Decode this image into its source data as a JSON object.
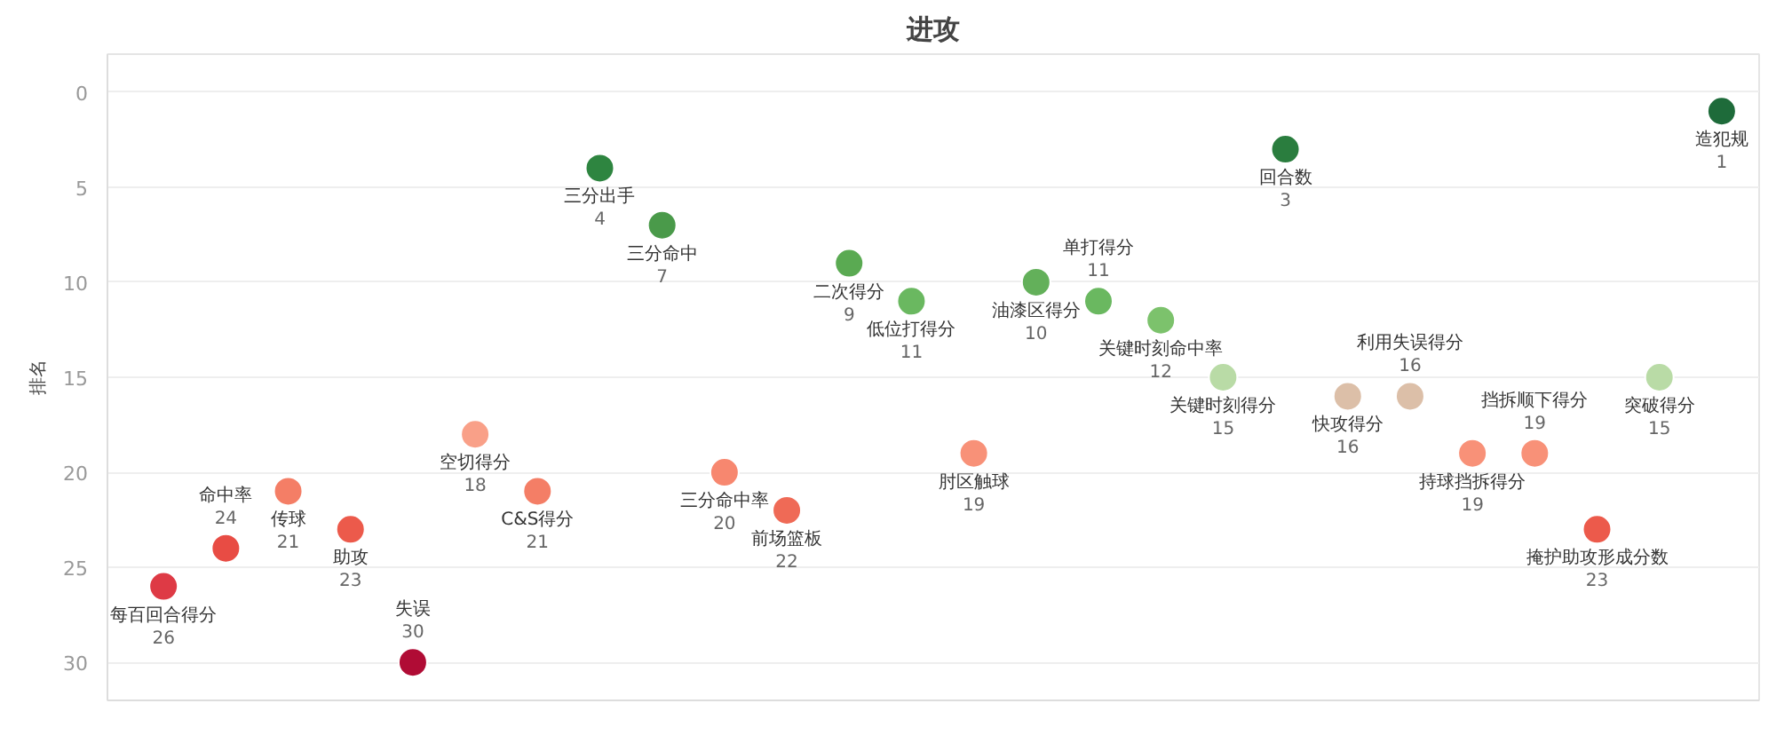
{
  "chart_data": {
    "type": "scatter",
    "title": "进攻",
    "ylabel": "排名",
    "categories": [
      "每百回合得分",
      "命中率",
      "传球",
      "助攻",
      "失误",
      "空切得分",
      "C&S得分",
      "三分出手",
      "三分命中",
      "三分命中率",
      "前场篮板",
      "二次得分",
      "低位打得分",
      "肘区触球",
      "油漆区得分",
      "单打得分",
      "关键时刻命中率",
      "关键时刻得分",
      "回合数",
      "快攻得分",
      "利用失误得分",
      "持球挡拆得分",
      "挡拆顺下得分",
      "掩护助攻形成分数",
      "突破得分",
      "造犯规"
    ],
    "values": [
      26,
      24,
      21,
      23,
      30,
      18,
      21,
      4,
      7,
      20,
      22,
      9,
      11,
      19,
      10,
      11,
      12,
      15,
      3,
      16,
      16,
      19,
      19,
      23,
      15,
      1
    ],
    "colors": [
      "#de3a45",
      "#e84c44",
      "#f47e66",
      "#ec5a4b",
      "#b00c35",
      "#f9a088",
      "#f47e66",
      "#2e8540",
      "#4a9a4a",
      "#f7876f",
      "#ef6a56",
      "#5aaa52",
      "#6ab860",
      "#f89178",
      "#63b05a",
      "#6ab860",
      "#7cc26c",
      "#b9dba6",
      "#2a7d3e",
      "#dcbfa8",
      "#dcbfa8",
      "#f89178",
      "#f89178",
      "#ec5a4b",
      "#b9dba6",
      "#1e6b3a"
    ],
    "ylim": [
      32,
      -2
    ],
    "yticks": [
      0,
      5,
      10,
      15,
      20,
      25,
      30
    ],
    "grid": "y",
    "marker": "circle",
    "data_labels": true,
    "tick_labels": "y"
  }
}
